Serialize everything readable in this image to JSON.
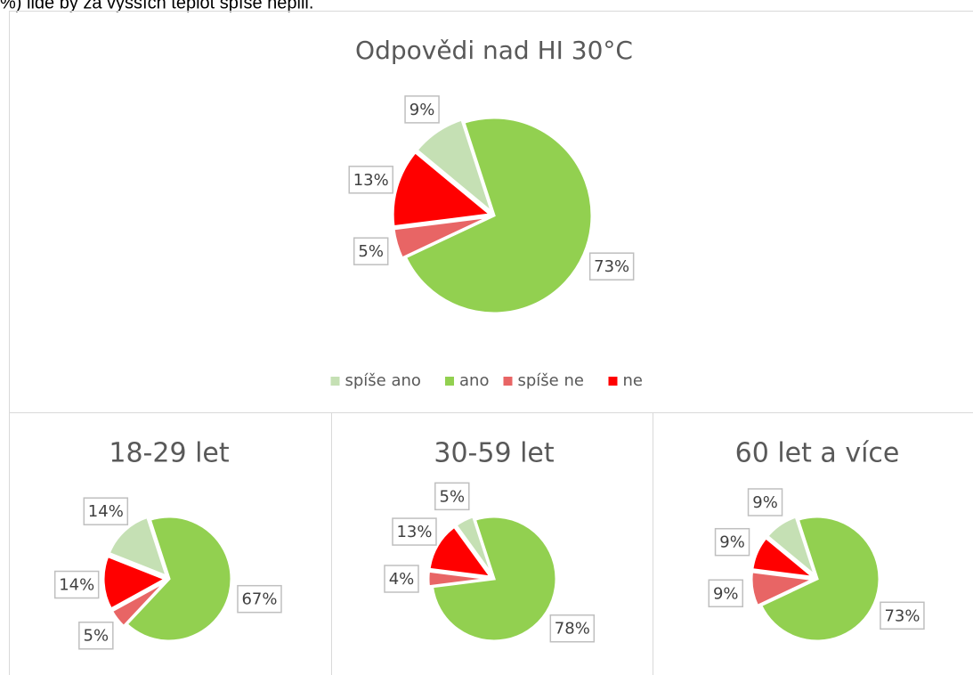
{
  "caption": "%) lidé by za vyšších teplot spíše nepili.",
  "chart_data": [
    {
      "type": "pie",
      "title": "Odpovědi nad HI 30°C",
      "categories": [
        "spíše ano",
        "ano",
        "spíše ne",
        "ne"
      ],
      "values": [
        9,
        73,
        5,
        13
      ],
      "value_labels": [
        "9%",
        "73%",
        "5%",
        "13%"
      ],
      "colors": [
        "#c5e0b4",
        "#92d050",
        "#e86565",
        "#ff0000"
      ],
      "legend": "bottom"
    },
    {
      "type": "pie",
      "title": "18-29 let",
      "categories": [
        "spíše ano",
        "ano",
        "spíše ne",
        "ne"
      ],
      "values": [
        14,
        67,
        5,
        14
      ],
      "value_labels": [
        "14%",
        "67%",
        "5%",
        "14%"
      ],
      "colors": [
        "#c5e0b4",
        "#92d050",
        "#e86565",
        "#ff0000"
      ]
    },
    {
      "type": "pie",
      "title": "30-59 let",
      "categories": [
        "spíše ano",
        "ano",
        "spíše ne",
        "ne"
      ],
      "values": [
        5,
        78,
        4,
        13
      ],
      "value_labels": [
        "5%",
        "78%",
        "4%",
        "13%"
      ],
      "colors": [
        "#c5e0b4",
        "#92d050",
        "#e86565",
        "#ff0000"
      ]
    },
    {
      "type": "pie",
      "title": "60 let a více",
      "categories": [
        "spíše ano",
        "ano",
        "spíše ne",
        "ne"
      ],
      "values": [
        9,
        73,
        9,
        9
      ],
      "value_labels": [
        "9%",
        "73%",
        "9%",
        "9%"
      ],
      "colors": [
        "#c5e0b4",
        "#92d050",
        "#e86565",
        "#ff0000"
      ]
    }
  ]
}
